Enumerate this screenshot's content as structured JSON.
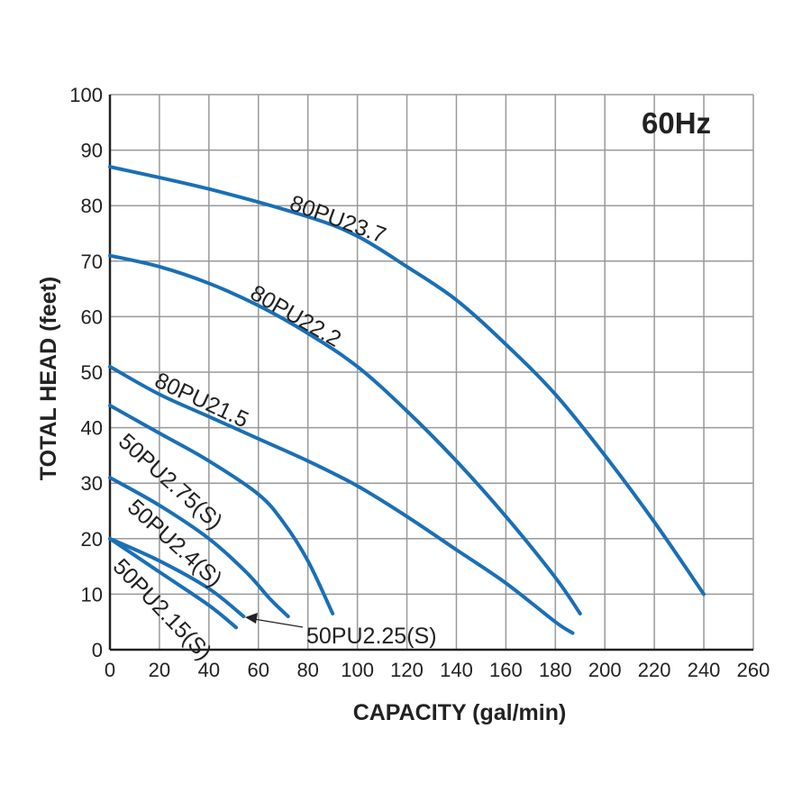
{
  "chart_data": {
    "type": "line",
    "annotation": "60Hz",
    "xlabel": "CAPACITY (gal/min)",
    "ylabel": "TOTAL HEAD (feet)",
    "xlim": [
      0,
      260
    ],
    "ylim": [
      0,
      100
    ],
    "xticks": [
      0,
      20,
      40,
      60,
      80,
      100,
      120,
      140,
      160,
      180,
      200,
      220,
      240,
      260
    ],
    "yticks": [
      0,
      10,
      20,
      30,
      40,
      50,
      60,
      70,
      80,
      90,
      100
    ],
    "grid": true,
    "line_color": "#1a6fb5",
    "series": [
      {
        "name": "80PU23.7",
        "x": [
          0,
          40,
          80,
          100,
          120,
          140,
          160,
          180,
          200,
          220,
          240
        ],
        "y": [
          87,
          83,
          78,
          74.5,
          69,
          63,
          55,
          46,
          35,
          23,
          10
        ]
      },
      {
        "name": "80PU22.2",
        "x": [
          0,
          20,
          40,
          60,
          80,
          100,
          120,
          140,
          160,
          180,
          190
        ],
        "y": [
          71,
          69,
          66,
          62,
          57,
          51,
          43,
          34,
          24,
          13,
          6.5
        ]
      },
      {
        "name": "80PU21.5",
        "x": [
          0,
          20,
          40,
          60,
          80,
          100,
          120,
          140,
          160,
          180,
          187
        ],
        "y": [
          51,
          46,
          42,
          38,
          34,
          29.5,
          24,
          18,
          12,
          5,
          3
        ]
      },
      {
        "name": "50PU2.75(S)",
        "x": [
          0,
          20,
          40,
          60,
          70,
          80,
          90
        ],
        "y": [
          44,
          39,
          34,
          28,
          23,
          16,
          6.5
        ]
      },
      {
        "name": "50PU2.4(S)",
        "x": [
          0,
          20,
          40,
          55,
          65,
          72
        ],
        "y": [
          31,
          26,
          20,
          14,
          9,
          6
        ]
      },
      {
        "name": "50PU2.25(S)",
        "x": [
          0,
          20,
          40,
          54
        ],
        "y": [
          20,
          16,
          11,
          6
        ]
      },
      {
        "name": "50PU2.15(S)",
        "x": [
          0,
          20,
          40,
          51
        ],
        "y": [
          20,
          14,
          8,
          4
        ]
      }
    ]
  }
}
